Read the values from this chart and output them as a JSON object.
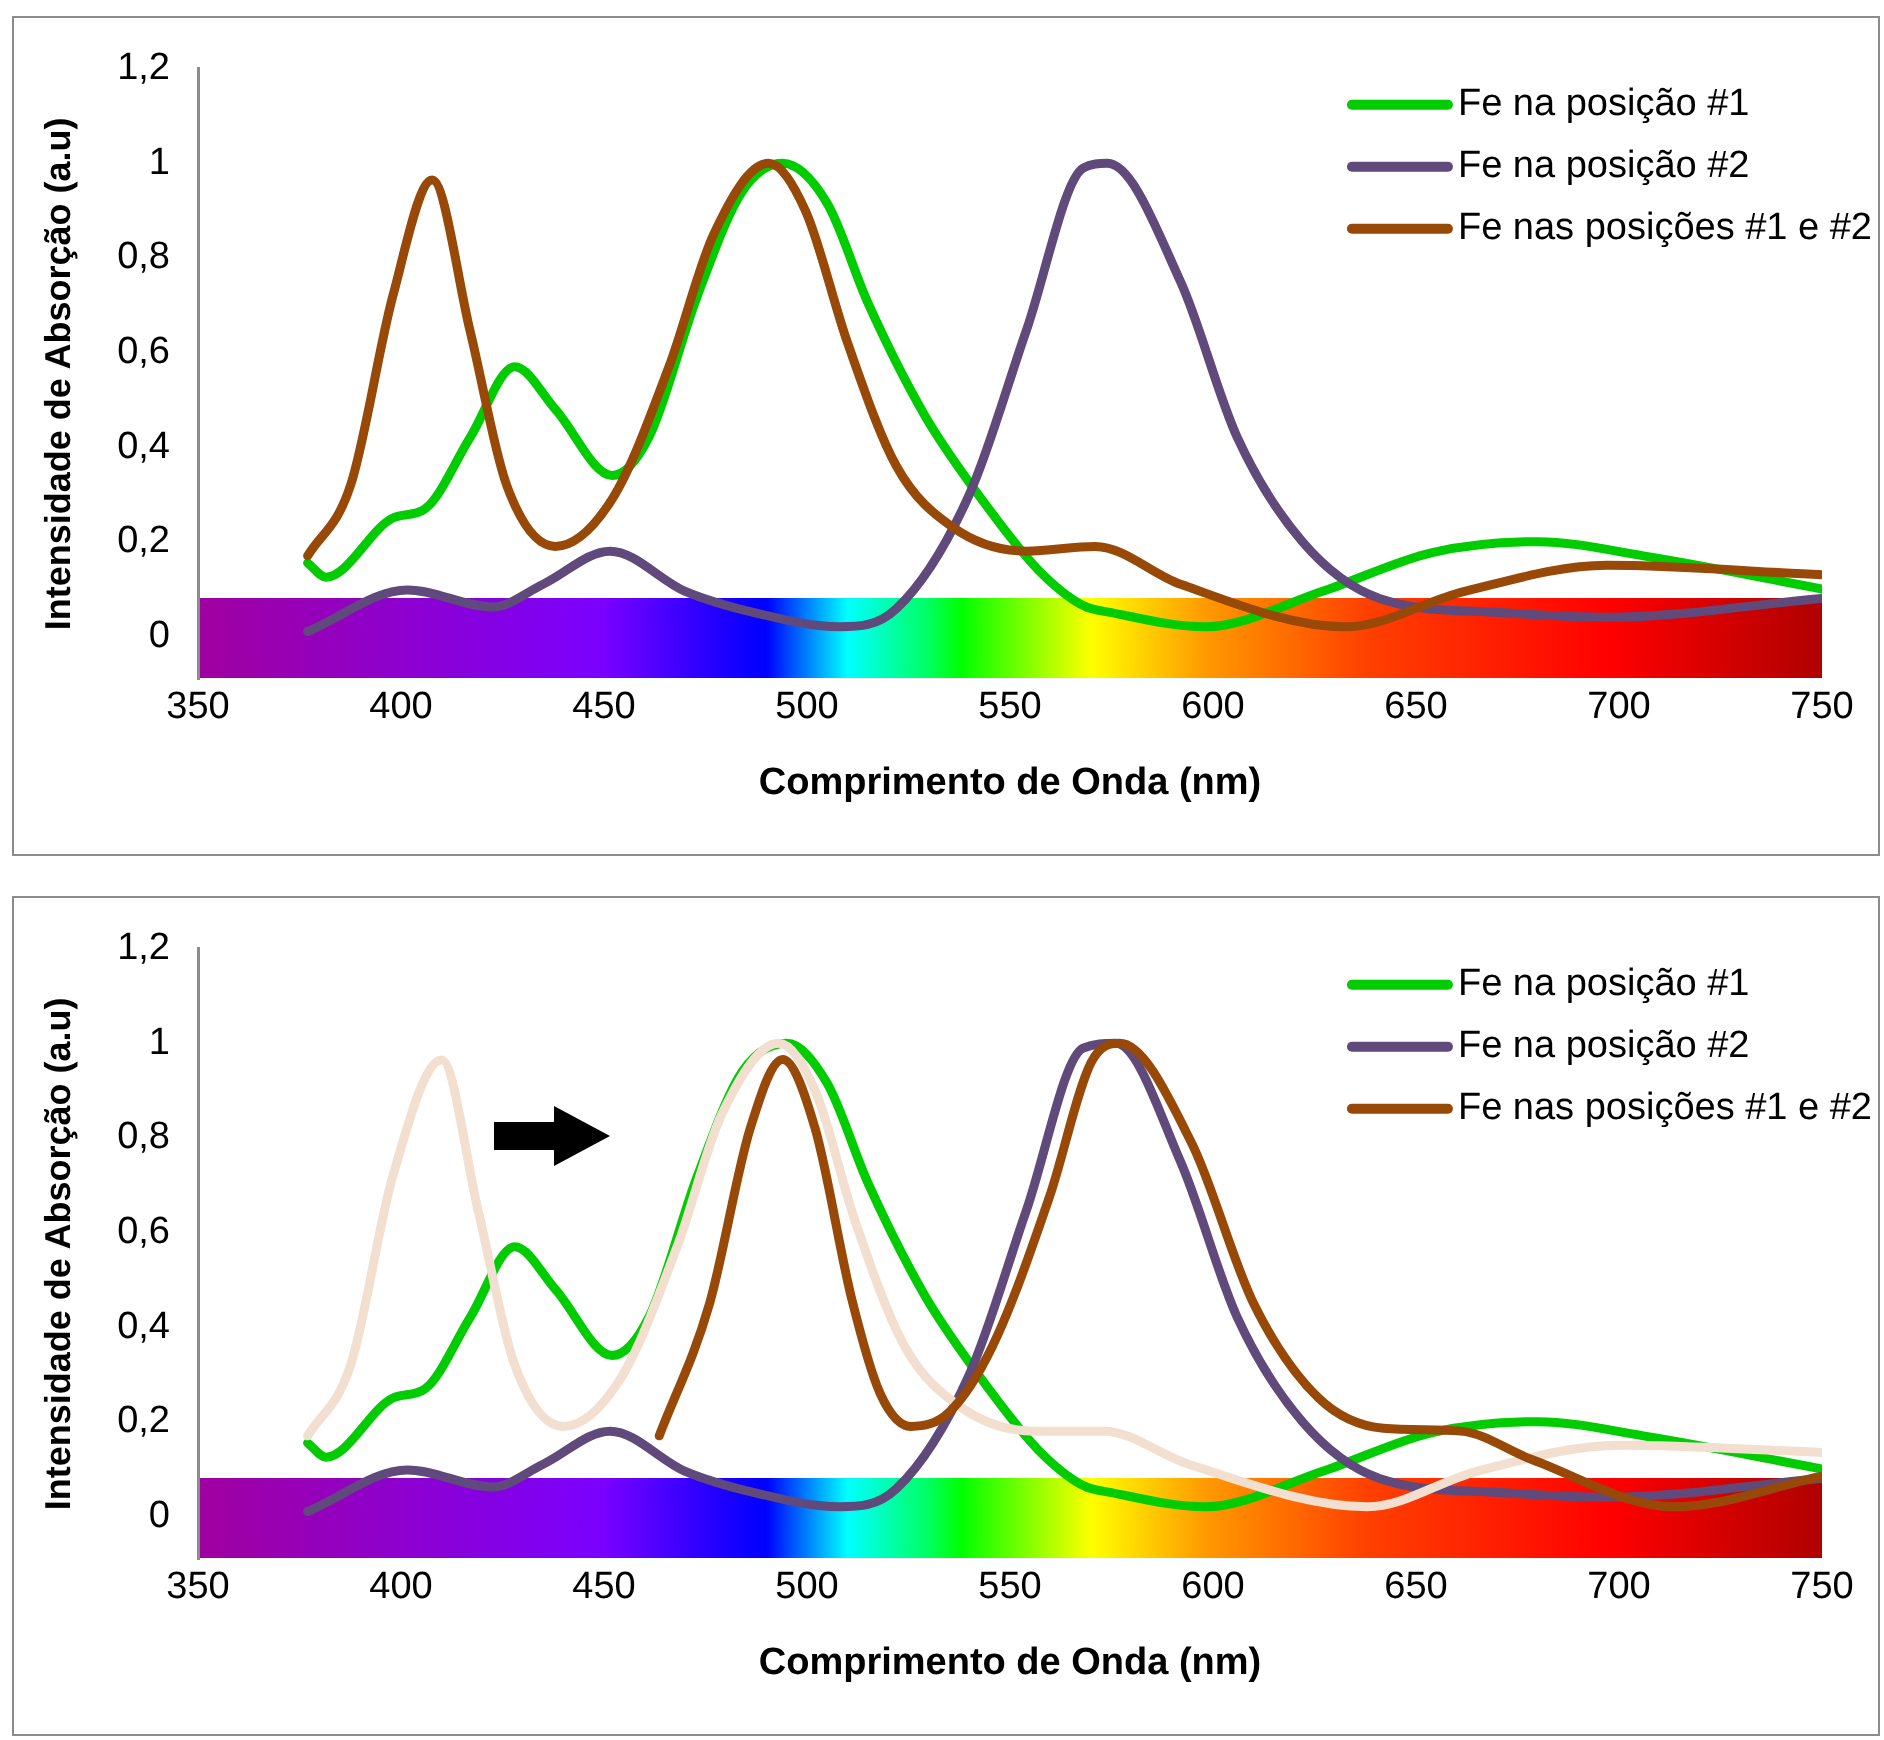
{
  "chart_data": [
    {
      "type": "line",
      "xlabel": "Comprimento de Onda (nm)",
      "ylabel": "Intensidade de Absorção (a.u)",
      "xlim": [
        350,
        750
      ],
      "xticks": [
        350,
        400,
        450,
        500,
        550,
        600,
        650,
        700,
        750
      ],
      "ylim": [
        -0.09,
        1.2
      ],
      "yticks": [
        {
          "value": 0,
          "label": "0"
        },
        {
          "value": 0.2,
          "label": "0,2"
        },
        {
          "value": 0.4,
          "label": "0,4"
        },
        {
          "value": 0.6,
          "label": "0,6"
        },
        {
          "value": 0.8,
          "label": "0,8"
        },
        {
          "value": 1,
          "label": "1"
        },
        {
          "value": 1.2,
          "label": "1,2"
        }
      ],
      "grid": false,
      "legend": "top right",
      "series": [
        {
          "name": "Fe na posição #1",
          "color": "#00cc00",
          "x": [
            377,
            381.5,
            398,
            406,
            417,
            428,
            438,
            452,
            461,
            473,
            484,
            494,
            505,
            515,
            529,
            543,
            557,
            568,
            575,
            598,
            627,
            654,
            680,
            706,
            750
          ],
          "values": [
            0.155,
            0.125,
            0.25,
            0.27,
            0.42,
            0.57,
            0.48,
            0.34,
            0.42,
            0.72,
            0.94,
            1.0,
            0.915,
            0.705,
            0.467,
            0.29,
            0.14,
            0.065,
            0.05,
            0.02,
            0.095,
            0.177,
            0.2,
            0.17,
            0.1
          ]
        },
        {
          "name": "Fe na posição #2",
          "color": "#604a7b",
          "x": [
            377,
            401.6,
            422.6,
            435,
            451.5,
            470,
            487,
            508,
            522,
            540,
            554,
            568,
            574,
            592,
            606,
            622,
            641,
            671,
            697,
            750
          ],
          "values": [
            0.01,
            0.098,
            0.062,
            0.11,
            0.18,
            0.095,
            0.05,
            0.02,
            0.058,
            0.3,
            0.646,
            0.99,
            1.0,
            0.75,
            0.42,
            0.2,
            0.08,
            0.05,
            0.04,
            0.08
          ]
        },
        {
          "name": "Fe nas posições #1 e #2",
          "color": "#984807",
          "x": [
            377,
            387.6,
            398,
            407.7,
            417,
            426,
            438,
            452,
            466,
            477,
            490.5,
            499.6,
            510,
            522,
            536,
            554,
            571,
            592,
            632.6,
            662,
            697,
            750
          ],
          "values": [
            0.17,
            0.32,
            0.72,
            0.965,
            0.646,
            0.32,
            0.19,
            0.29,
            0.57,
            0.85,
            1.0,
            0.9,
            0.62,
            0.36,
            0.23,
            0.18,
            0.19,
            0.11,
            0.02,
            0.095,
            0.15,
            0.13
          ]
        }
      ]
    },
    {
      "type": "line",
      "xlabel": "Comprimento de Onda (nm)",
      "ylabel": "Intensidade de Absorção (a.u)",
      "xlim": [
        350,
        750
      ],
      "xticks": [
        350,
        400,
        450,
        500,
        550,
        600,
        650,
        700,
        750
      ],
      "ylim": [
        -0.09,
        1.2
      ],
      "yticks": [
        {
          "value": 0,
          "label": "0"
        },
        {
          "value": 0.2,
          "label": "0,2"
        },
        {
          "value": 0.4,
          "label": "0,4"
        },
        {
          "value": 0.6,
          "label": "0,6"
        },
        {
          "value": 0.8,
          "label": "0,8"
        },
        {
          "value": 1,
          "label": "1"
        },
        {
          "value": 1.2,
          "label": "1,2"
        }
      ],
      "grid": false,
      "legend": "top right",
      "series": [
        {
          "name": "Fe na posição #1",
          "color": "#00cc00",
          "x": [
            377,
            381.5,
            398,
            406,
            417,
            428,
            438,
            452,
            461,
            473,
            484,
            495,
            505,
            515,
            529,
            543,
            557,
            568,
            575,
            598,
            627,
            654,
            680,
            706,
            750
          ],
          "values": [
            0.155,
            0.125,
            0.25,
            0.27,
            0.42,
            0.57,
            0.48,
            0.34,
            0.42,
            0.72,
            0.94,
            1.0,
            0.915,
            0.705,
            0.467,
            0.29,
            0.14,
            0.065,
            0.05,
            0.02,
            0.095,
            0.177,
            0.2,
            0.17,
            0.1
          ]
        },
        {
          "name": "Fe na posição #2",
          "color": "#604a7b",
          "x": [
            377,
            401.6,
            422.6,
            435,
            451.5,
            470,
            487,
            508,
            522,
            540,
            554,
            568,
            576,
            592,
            606,
            622,
            641,
            671,
            697,
            750
          ],
          "values": [
            0.01,
            0.098,
            0.062,
            0.11,
            0.18,
            0.095,
            0.05,
            0.02,
            0.058,
            0.3,
            0.646,
            0.99,
            1.0,
            0.75,
            0.42,
            0.2,
            0.08,
            0.05,
            0.04,
            0.08
          ]
        },
        {
          "color": "#f2dfd0",
          "x": [
            377,
            387.6,
            398,
            410,
            419,
            428,
            440,
            454,
            468,
            479,
            493,
            502,
            512,
            524,
            538,
            556,
            573,
            594,
            638,
            665,
            700,
            750
          ],
          "values": [
            0.17,
            0.32,
            0.72,
            0.965,
            0.646,
            0.32,
            0.19,
            0.29,
            0.57,
            0.85,
            1.0,
            0.9,
            0.62,
            0.36,
            0.23,
            0.18,
            0.18,
            0.11,
            0.02,
            0.095,
            0.15,
            0.135
          ]
        },
        {
          "name": "Fe nas posições #1 e #2",
          "color": "#984807",
          "x": [
            463.6,
            476,
            486,
            494,
            502,
            511,
            518,
            525.6,
            535,
            545.7,
            559.7,
            570,
            577,
            594.7,
            610,
            626,
            642,
            661,
            678.5,
            713.5,
            750
          ],
          "values": [
            0.17,
            0.45,
            0.82,
            0.966,
            0.82,
            0.46,
            0.26,
            0.19,
            0.22,
            0.36,
            0.675,
            0.96,
            1.0,
            0.79,
            0.45,
            0.25,
            0.186,
            0.18,
            0.12,
            0.02,
            0.085
          ]
        }
      ]
    }
  ]
}
